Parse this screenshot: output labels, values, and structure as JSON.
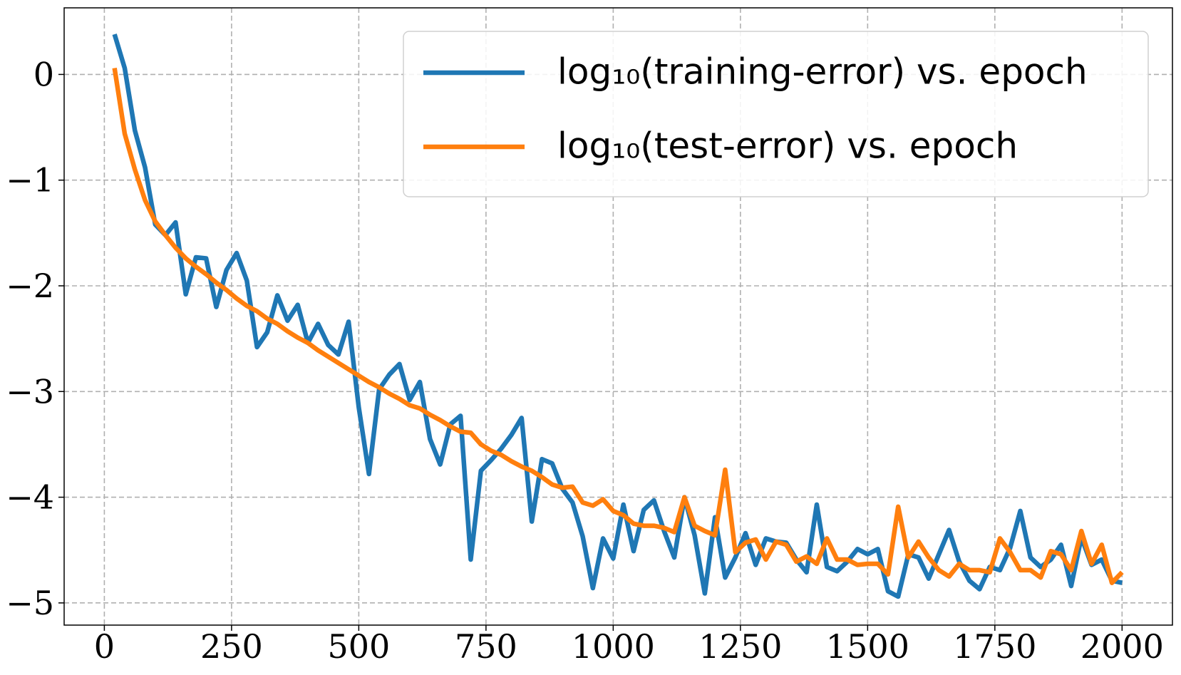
{
  "chart_data": {
    "type": "line",
    "x": [
      20,
      40,
      60,
      80,
      100,
      120,
      140,
      160,
      180,
      200,
      220,
      240,
      260,
      280,
      300,
      320,
      340,
      360,
      380,
      400,
      420,
      440,
      460,
      480,
      500,
      520,
      540,
      560,
      580,
      600,
      620,
      640,
      660,
      680,
      700,
      720,
      740,
      760,
      780,
      800,
      820,
      840,
      860,
      880,
      900,
      920,
      940,
      960,
      980,
      1000,
      1020,
      1040,
      1060,
      1080,
      1100,
      1120,
      1140,
      1160,
      1180,
      1200,
      1220,
      1240,
      1260,
      1280,
      1300,
      1320,
      1340,
      1360,
      1380,
      1400,
      1420,
      1440,
      1460,
      1480,
      1500,
      1520,
      1540,
      1560,
      1580,
      1600,
      1620,
      1640,
      1660,
      1680,
      1700,
      1720,
      1740,
      1760,
      1780,
      1800,
      1820,
      1840,
      1860,
      1880,
      1900,
      1920,
      1940,
      1960,
      1980,
      2000
    ],
    "series": [
      {
        "name": "log₁₀(training-error) vs. epoch",
        "color": "#1f77b4",
        "values": [
          0.38,
          0.06,
          -0.53,
          -0.88,
          -1.42,
          -1.52,
          -1.4,
          -2.08,
          -1.73,
          -1.74,
          -2.2,
          -1.85,
          -1.69,
          -1.95,
          -2.58,
          -2.44,
          -2.09,
          -2.33,
          -2.18,
          -2.54,
          -2.36,
          -2.56,
          -2.65,
          -2.34,
          -3.15,
          -3.78,
          -2.98,
          -2.84,
          -2.74,
          -3.08,
          -2.91,
          -3.45,
          -3.69,
          -3.31,
          -3.23,
          -4.59,
          -3.75,
          -3.65,
          -3.54,
          -3.41,
          -3.25,
          -4.23,
          -3.64,
          -3.68,
          -3.92,
          -4.05,
          -4.37,
          -4.86,
          -4.39,
          -4.58,
          -4.07,
          -4.51,
          -4.12,
          -4.03,
          -4.32,
          -4.57,
          -4.0,
          -4.36,
          -4.91,
          -4.19,
          -4.76,
          -4.57,
          -4.34,
          -4.64,
          -4.39,
          -4.42,
          -4.43,
          -4.59,
          -4.71,
          -4.07,
          -4.66,
          -4.7,
          -4.61,
          -4.49,
          -4.54,
          -4.49,
          -4.89,
          -4.94,
          -4.54,
          -4.57,
          -4.77,
          -4.54,
          -4.31,
          -4.61,
          -4.79,
          -4.87,
          -4.66,
          -4.69,
          -4.48,
          -4.13,
          -4.57,
          -4.66,
          -4.59,
          -4.45,
          -4.84,
          -4.38,
          -4.64,
          -4.59,
          -4.79,
          -4.81
        ]
      },
      {
        "name": "log₁₀(test-error) vs. epoch",
        "color": "#ff7f0e",
        "values": [
          0.06,
          -0.56,
          -0.9,
          -1.19,
          -1.39,
          -1.52,
          -1.64,
          -1.74,
          -1.82,
          -1.89,
          -1.97,
          -2.04,
          -2.12,
          -2.19,
          -2.24,
          -2.31,
          -2.36,
          -2.43,
          -2.49,
          -2.54,
          -2.61,
          -2.67,
          -2.73,
          -2.79,
          -2.85,
          -2.91,
          -2.96,
          -3.02,
          -3.07,
          -3.13,
          -3.16,
          -3.22,
          -3.27,
          -3.33,
          -3.38,
          -3.39,
          -3.5,
          -3.56,
          -3.6,
          -3.66,
          -3.71,
          -3.75,
          -3.81,
          -3.88,
          -3.91,
          -3.9,
          -4.05,
          -4.08,
          -4.02,
          -4.13,
          -4.17,
          -4.25,
          -4.27,
          -4.27,
          -4.29,
          -4.33,
          -4.0,
          -4.27,
          -4.32,
          -4.36,
          -3.74,
          -4.52,
          -4.43,
          -4.4,
          -4.59,
          -4.42,
          -4.45,
          -4.61,
          -4.56,
          -4.63,
          -4.39,
          -4.59,
          -4.59,
          -4.64,
          -4.63,
          -4.63,
          -4.73,
          -4.09,
          -4.57,
          -4.42,
          -4.57,
          -4.69,
          -4.75,
          -4.63,
          -4.69,
          -4.69,
          -4.71,
          -4.39,
          -4.52,
          -4.69,
          -4.69,
          -4.76,
          -4.51,
          -4.54,
          -4.69,
          -4.32,
          -4.63,
          -4.45,
          -4.81,
          -4.71
        ]
      }
    ],
    "xlim": [
      -79,
      2099
    ],
    "xticks": [
      0,
      250,
      500,
      750,
      1000,
      1250,
      1500,
      1750,
      2000
    ],
    "ylim": [
      -5.21,
      0.63
    ],
    "yticks": [
      {
        "value": -5,
        "label": "−5"
      },
      {
        "value": -4,
        "label": "−4"
      },
      {
        "value": -3,
        "label": "−3"
      },
      {
        "value": -2,
        "label": "−2"
      },
      {
        "value": -1,
        "label": "−1"
      },
      0
    ],
    "grid": true,
    "legend": "upper right"
  }
}
